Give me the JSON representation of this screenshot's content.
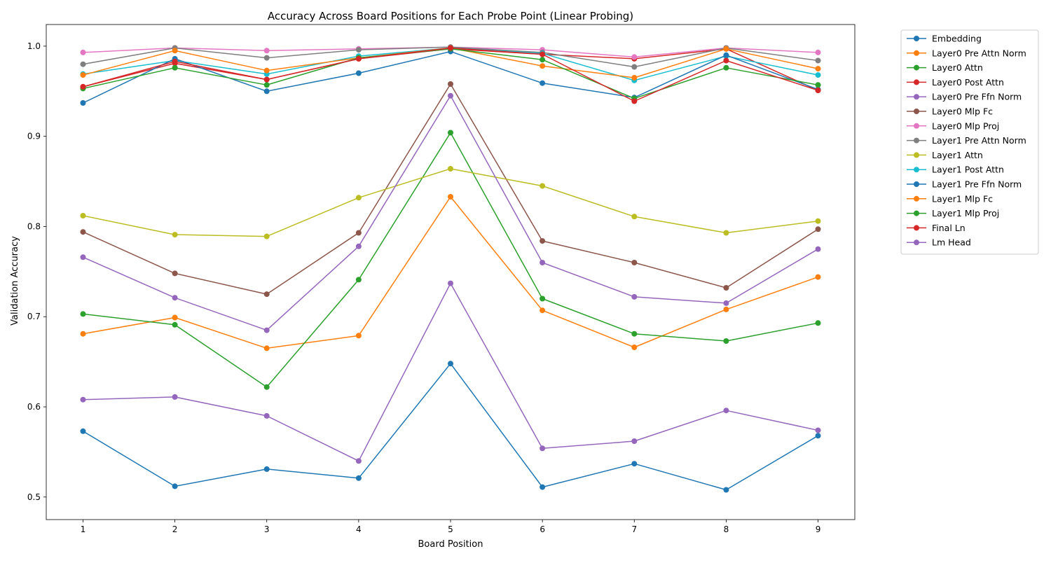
{
  "chart_data": {
    "type": "line",
    "title": "Accuracy Across Board Positions for Each Probe Point (Linear Probing)",
    "xlabel": "Board Position",
    "ylabel": "Validation Accuracy",
    "x": [
      1,
      2,
      3,
      4,
      5,
      6,
      7,
      8,
      9
    ],
    "xlim": [
      0.6,
      9.4
    ],
    "ylim": [
      0.475,
      1.024
    ],
    "yticks": [
      0.5,
      0.6,
      0.7,
      0.8,
      0.9,
      1.0
    ],
    "ytick_labels": [
      "0.5",
      "0.6",
      "0.7",
      "0.8",
      "0.9",
      "1.0"
    ],
    "xtick_labels": [
      "1",
      "2",
      "3",
      "4",
      "5",
      "6",
      "7",
      "8",
      "9"
    ],
    "grid": false,
    "legend_position": "outside-top-right",
    "series": [
      {
        "name": "Embedding",
        "color": "#1f77b4",
        "values": [
          0.573,
          0.512,
          0.531,
          0.521,
          0.648,
          0.511,
          0.537,
          0.508,
          0.568
        ]
      },
      {
        "name": "Layer0 Pre Attn Norm",
        "color": "#ff7f0e",
        "values": [
          0.681,
          0.699,
          0.665,
          0.679,
          0.833,
          0.707,
          0.666,
          0.708,
          0.744
        ]
      },
      {
        "name": "Layer0 Attn",
        "color": "#2ca02c",
        "values": [
          0.703,
          0.691,
          0.622,
          0.741,
          0.904,
          0.72,
          0.681,
          0.673,
          0.693
        ]
      },
      {
        "name": "Layer0 Post Attn",
        "color": "#d62728",
        "values": [
          0.955,
          0.981,
          0.963,
          0.986,
          0.997,
          0.991,
          0.986,
          0.997,
          0.951
        ]
      },
      {
        "name": "Layer0 Pre Ffn Norm",
        "color": "#9467bd",
        "values": [
          0.608,
          0.611,
          0.59,
          0.54,
          0.737,
          0.554,
          0.562,
          0.596,
          0.574
        ]
      },
      {
        "name": "Layer0 Mlp Fc",
        "color": "#8c564b",
        "values": [
          0.794,
          0.748,
          0.725,
          0.793,
          0.958,
          0.784,
          0.76,
          0.732,
          0.797
        ]
      },
      {
        "name": "Layer0 Mlp Proj",
        "color": "#e377c2",
        "values": [
          0.993,
          0.998,
          0.995,
          0.997,
          0.999,
          0.996,
          0.988,
          0.998,
          0.993
        ]
      },
      {
        "name": "Layer1 Pre Attn Norm",
        "color": "#7f7f7f",
        "values": [
          0.98,
          0.998,
          0.987,
          0.996,
          0.999,
          0.993,
          0.977,
          0.998,
          0.984
        ]
      },
      {
        "name": "Layer1 Attn",
        "color": "#bcbd22",
        "values": [
          0.812,
          0.791,
          0.789,
          0.832,
          0.864,
          0.845,
          0.811,
          0.793,
          0.806
        ]
      },
      {
        "name": "Layer1 Post Attn",
        "color": "#17becf",
        "values": [
          0.969,
          0.984,
          0.969,
          0.989,
          0.998,
          0.992,
          0.962,
          0.989,
          0.968
        ]
      },
      {
        "name": "Layer1 Pre Ffn Norm",
        "color": "#1f77b4",
        "values": [
          0.937,
          0.986,
          0.95,
          0.97,
          0.994,
          0.959,
          0.943,
          0.99,
          0.952
        ]
      },
      {
        "name": "Layer1 Mlp Fc",
        "color": "#ff7f0e",
        "values": [
          0.968,
          0.995,
          0.973,
          0.987,
          0.998,
          0.978,
          0.965,
          0.997,
          0.975
        ]
      },
      {
        "name": "Layer1 Mlp Proj",
        "color": "#2ca02c",
        "values": [
          0.953,
          0.976,
          0.957,
          0.987,
          0.997,
          0.985,
          0.942,
          0.976,
          0.957
        ]
      },
      {
        "name": "Final Ln",
        "color": "#d62728",
        "values": [
          0.955,
          0.983,
          0.963,
          0.986,
          0.998,
          0.991,
          0.939,
          0.984,
          0.951
        ]
      },
      {
        "name": "Lm Head",
        "color": "#9467bd",
        "values": [
          0.766,
          0.721,
          0.685,
          0.778,
          0.945,
          0.76,
          0.722,
          0.715,
          0.775
        ]
      }
    ]
  }
}
